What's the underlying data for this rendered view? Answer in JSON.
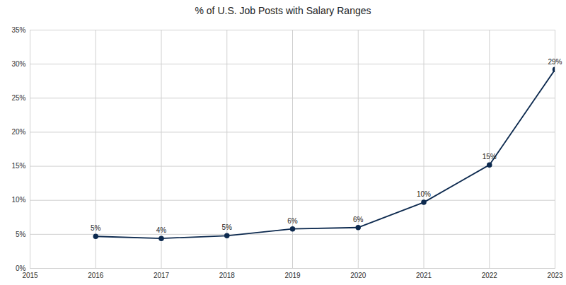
{
  "chart_data": {
    "type": "line",
    "title": "% of U.S. Job Posts with Salary Ranges",
    "x": [
      2016,
      2017,
      2018,
      2019,
      2020,
      2021,
      2022,
      2023
    ],
    "values": [
      4.7,
      4.4,
      4.8,
      5.8,
      6.0,
      9.7,
      15.2,
      29.2
    ],
    "value_labels": [
      "5%",
      "4%",
      "5%",
      "6%",
      "6%",
      "10%",
      "15%",
      "29%"
    ],
    "data_labels": true,
    "color": "#0d2a4f",
    "marker": "circle",
    "line_style": "solid",
    "xlim": [
      2015,
      2023
    ],
    "xticks": [
      2015,
      2016,
      2017,
      2018,
      2019,
      2020,
      2021,
      2022,
      2023
    ],
    "ylim": [
      0,
      35
    ],
    "yticks": [
      {
        "value": 0,
        "label": "0%"
      },
      {
        "value": 5,
        "label": "5%"
      },
      {
        "value": 10,
        "label": "10%"
      },
      {
        "value": 15,
        "label": "15%"
      },
      {
        "value": 20,
        "label": "20%"
      },
      {
        "value": 25,
        "label": "25%"
      },
      {
        "value": 30,
        "label": "30%"
      },
      {
        "value": 35,
        "label": "35%"
      }
    ],
    "grid": true
  }
}
